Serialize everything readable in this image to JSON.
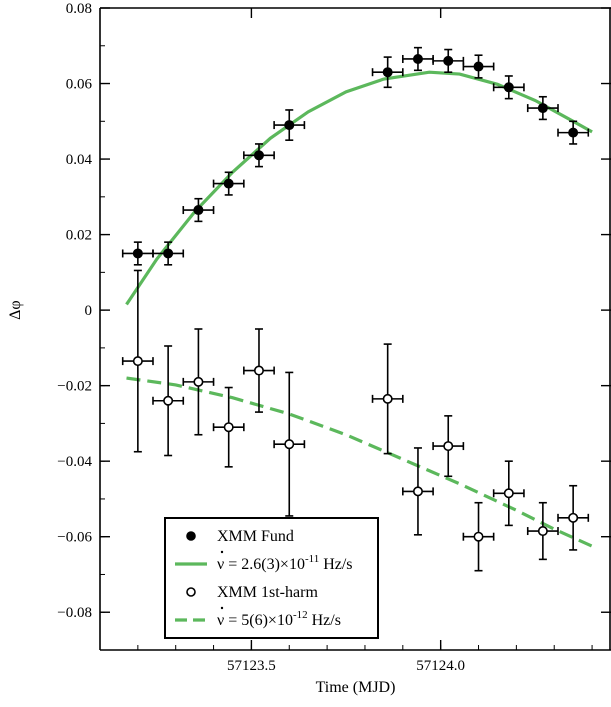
{
  "chart_data": {
    "type": "scatter",
    "title": "",
    "xlabel": "Time (MJD)",
    "ylabel": "Δφ",
    "xlim": [
      57123.1,
      57124.45
    ],
    "ylim": [
      -0.09,
      0.08
    ],
    "x_ticks": [
      57123.5,
      57124.0
    ],
    "x_tick_labels": [
      "57123.5",
      "57124.0"
    ],
    "y_ticks": [
      -0.08,
      -0.06,
      -0.04,
      -0.02,
      0,
      0.02,
      0.04,
      0.06,
      0.08
    ],
    "y_tick_labels": [
      "−0.08",
      "−0.06",
      "−0.04",
      "−0.02",
      "0",
      "0.02",
      "0.04",
      "0.06",
      "0.08"
    ],
    "grid": false,
    "legend_position": "bottom-left",
    "series": [
      {
        "name": "XMM Fund",
        "kind": "points-filled",
        "color": "#000000",
        "x": [
          57123.2,
          57123.28,
          57123.36,
          57123.44,
          57123.52,
          57123.6,
          57123.86,
          57123.94,
          57124.02,
          57124.1,
          57124.18,
          57124.27,
          57124.35
        ],
        "y": [
          0.015,
          0.015,
          0.0265,
          0.0335,
          0.041,
          0.049,
          0.063,
          0.0665,
          0.066,
          0.0645,
          0.059,
          0.0535,
          0.047
        ],
        "xerr": [
          0.04,
          0.04,
          0.04,
          0.04,
          0.04,
          0.04,
          0.04,
          0.04,
          0.04,
          0.04,
          0.04,
          0.04,
          0.04
        ],
        "yerr": [
          0.003,
          0.003,
          0.003,
          0.003,
          0.003,
          0.004,
          0.004,
          0.003,
          0.003,
          0.003,
          0.003,
          0.003,
          0.003
        ]
      },
      {
        "name": "XMM 1st-harm",
        "kind": "points-open",
        "color": "#000000",
        "x": [
          57123.2,
          57123.28,
          57123.36,
          57123.44,
          57123.52,
          57123.6,
          57123.86,
          57123.94,
          57124.02,
          57124.1,
          57124.18,
          57124.27,
          57124.35
        ],
        "y": [
          -0.0135,
          -0.024,
          -0.019,
          -0.031,
          -0.016,
          -0.0355,
          -0.0235,
          -0.048,
          -0.036,
          -0.06,
          -0.0485,
          -0.0585,
          -0.055
        ],
        "xerr": [
          0.04,
          0.04,
          0.04,
          0.04,
          0.04,
          0.04,
          0.04,
          0.04,
          0.04,
          0.04,
          0.04,
          0.04,
          0.04
        ],
        "yerr": [
          0.024,
          0.0145,
          0.014,
          0.0105,
          0.011,
          0.019,
          0.0145,
          0.0115,
          0.008,
          0.009,
          0.0085,
          0.0075,
          0.0085
        ]
      },
      {
        "name": "ν̇ = 2.6(3)×10⁻¹¹ Hz/s",
        "kind": "line-solid",
        "color": "#5cb85c",
        "x": [
          57123.17,
          57123.25,
          57123.35,
          57123.45,
          57123.55,
          57123.65,
          57123.75,
          57123.85,
          57123.97,
          57124.05,
          57124.15,
          57124.25,
          57124.35,
          57124.4
        ],
        "y": [
          0.0015,
          0.0135,
          0.026,
          0.0365,
          0.0455,
          0.0525,
          0.0578,
          0.0612,
          0.063,
          0.0625,
          0.0598,
          0.0555,
          0.05,
          0.0472
        ]
      },
      {
        "name": "ν̇ = 5(6)×10⁻¹² Hz/s",
        "kind": "line-dashed",
        "color": "#5cb85c",
        "x": [
          57123.17,
          57123.3,
          57123.45,
          57123.6,
          57123.75,
          57123.9,
          57124.05,
          57124.2,
          57124.3,
          57124.4
        ],
        "y": [
          -0.018,
          -0.0198,
          -0.0232,
          -0.0275,
          -0.033,
          -0.0395,
          -0.046,
          -0.053,
          -0.058,
          -0.0625
        ]
      }
    ],
    "legend": {
      "items": [
        {
          "marker": "filled",
          "label": "XMM Fund"
        },
        {
          "marker": "line-solid",
          "label_main": "ν = 2.6(3)×10",
          "label_exp": "-11",
          "label_unit": " Hz/s"
        },
        {
          "marker": "open",
          "label": "XMM 1st-harm"
        },
        {
          "marker": "line-dashed",
          "label_main": "ν = 5(6)×10",
          "label_exp": "-12",
          "label_unit": " Hz/s"
        }
      ]
    }
  }
}
